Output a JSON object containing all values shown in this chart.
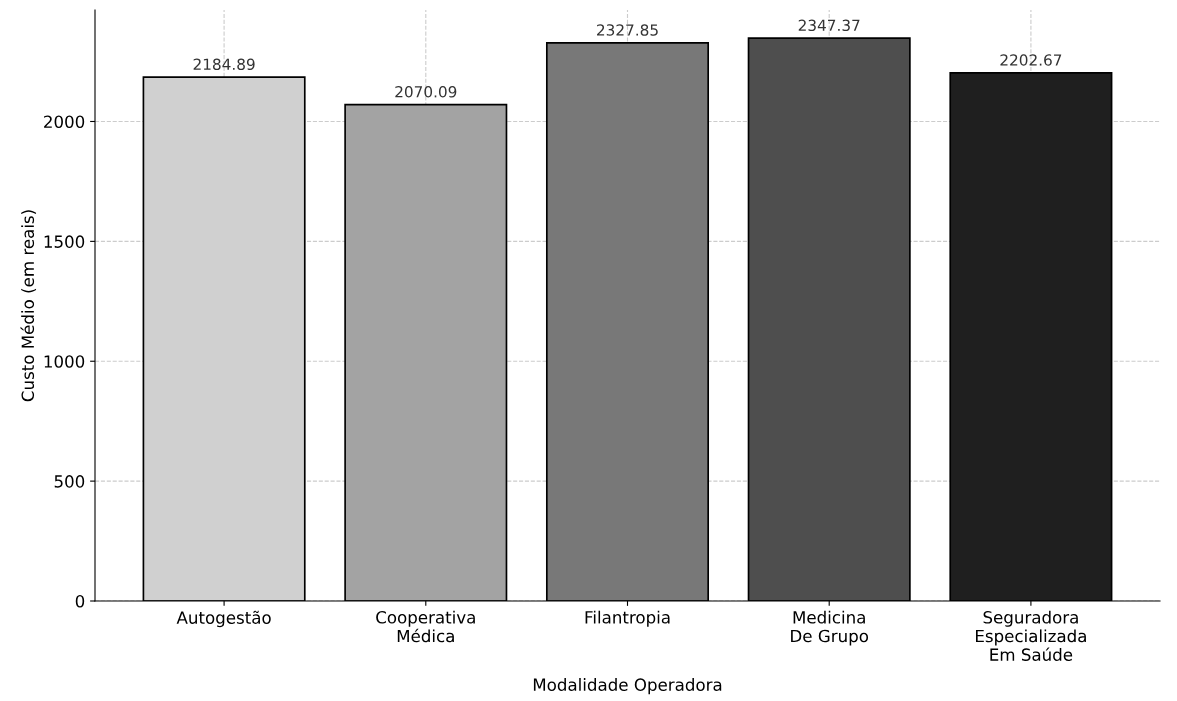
{
  "chart_data": {
    "type": "bar",
    "xlabel": "Modalidade Operadora",
    "ylabel": "Custo Médio (em reais)",
    "categories": [
      "Autogestão",
      "Cooperativa\nMédica",
      "Filantropia",
      "Medicina\nDe Grupo",
      "Seguradora\nEspecializada\nEm Saúde"
    ],
    "values": [
      2184.89,
      2070.09,
      2327.85,
      2347.37,
      2202.67
    ],
    "colors": [
      "#d0d0d0",
      "#a3a3a3",
      "#787878",
      "#4e4e4e",
      "#1f1f1f"
    ],
    "ylim": [
      0,
      2465
    ],
    "yticks": [
      0,
      500,
      1000,
      1500,
      2000
    ],
    "grid": true,
    "data_labels": true
  }
}
